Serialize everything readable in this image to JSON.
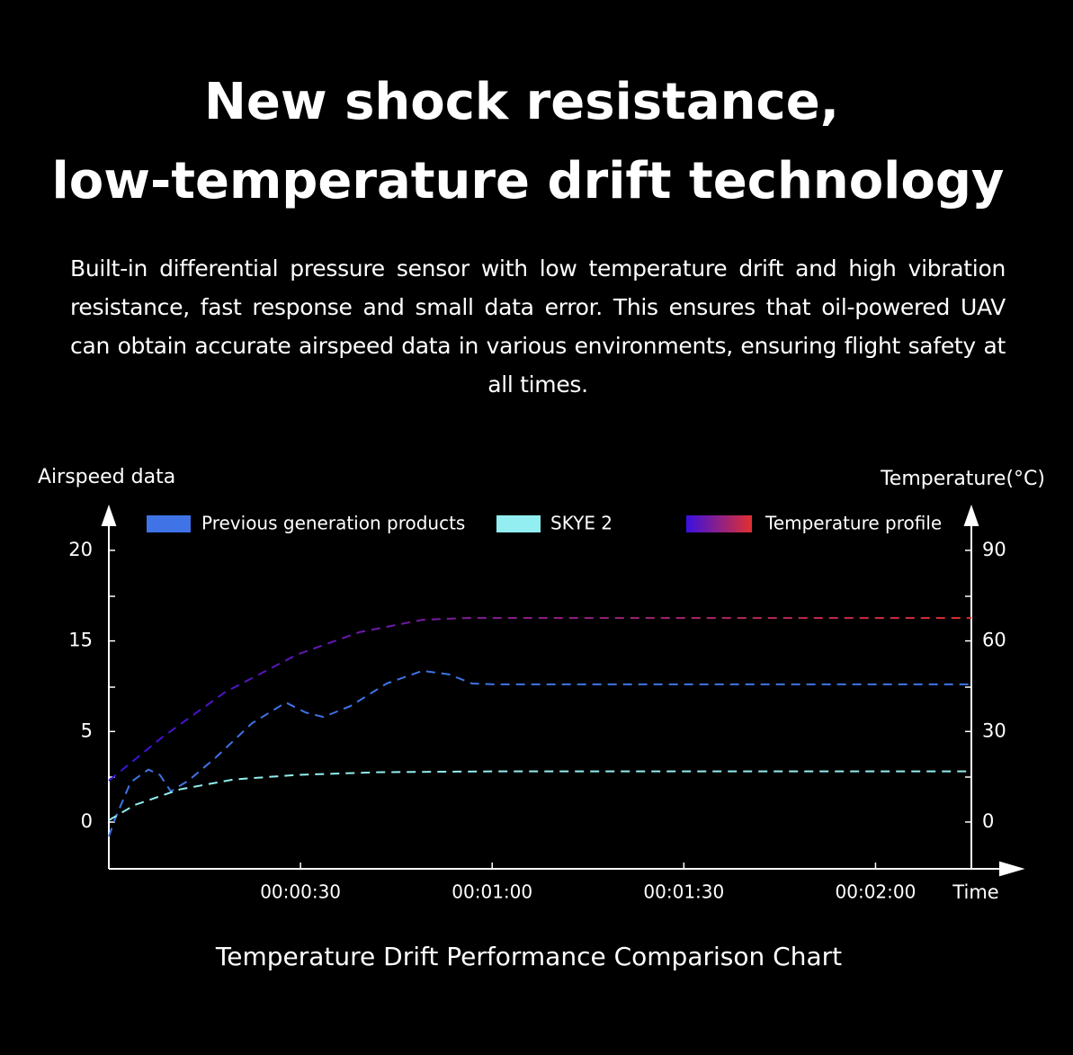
{
  "header": {
    "title_lines": [
      "New shock resistance,",
      "low-temperature drift technology"
    ],
    "description": "Built-in differential pressure sensor with low temperature drift and high vibration resistance, fast response and small data error. This ensures that oil-powered UAV can obtain accurate airspeed data in various environments, ensuring flight safety at all times."
  },
  "chart_data": {
    "type": "line",
    "title": "Temperature Drift Performance Comparison Chart",
    "y_label": "Airspeed data",
    "y2_label": "Temperature(°C)",
    "x_label": "Time",
    "xlim": [
      0,
      135
    ],
    "xticks": [
      {
        "value": 30,
        "label": "00:00:30"
      },
      {
        "value": 60,
        "label": "00:01:00"
      },
      {
        "value": 90,
        "label": "00:01:30"
      },
      {
        "value": 120,
        "label": "00:02:00"
      }
    ],
    "ylim": [
      -2.6,
      20
    ],
    "yticks": [
      0,
      5,
      15,
      20
    ],
    "y2lim": [
      -15.5,
      90
    ],
    "y2ticks": [
      0,
      30,
      60,
      90
    ],
    "series": [
      {
        "name": "Previous generation products",
        "color": "#3f73e6",
        "x": [
          0,
          1,
          3.4,
          6.2,
          8,
          9.7,
          12.5,
          16.7,
          22.4,
          27.7,
          30.8,
          33.6,
          37.8,
          43.5,
          49.1,
          53.3,
          56.8,
          60.3,
          135
        ],
        "values": [
          -0.8,
          0.2,
          2.2,
          2.9,
          2.6,
          1.7,
          2.3,
          3.55,
          5.9,
          8.2,
          7.1,
          6.6,
          7.8,
          10.3,
          11.7,
          11.3,
          10.3,
          10.2,
          10.2
        ]
      },
      {
        "name": "SKYE 2",
        "color": "#92eef0",
        "x": [
          0,
          4.1,
          11.1,
          19.5,
          29.4,
          42,
          60.3,
          135
        ],
        "values": [
          0.1,
          0.95,
          1.8,
          2.35,
          2.6,
          2.75,
          2.8,
          2.8
        ]
      },
      {
        "name": "Temperature profile",
        "color": [
          "#3a10e0",
          "#e03030"
        ],
        "axis": "y2",
        "x": [
          0,
          8.3,
          18.1,
          29.4,
          39.2,
          49.1,
          56.1,
          135
        ],
        "values": [
          13.7,
          28,
          42.9,
          55.4,
          62.9,
          67,
          67.6,
          67.6
        ]
      }
    ]
  }
}
